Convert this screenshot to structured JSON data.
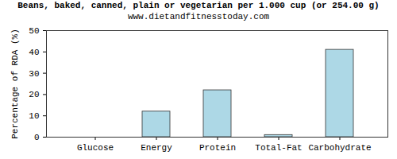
{
  "chart_data": {
    "type": "bar",
    "title": "Beans, baked, canned, plain or vegetarian per 1.000 cup (or 254.00 g)",
    "subtitle": "www.dietandfitnesstoday.com",
    "y_label": "Percentage of RDA (%)",
    "categories": [
      "Glucose",
      "Energy",
      "Protein",
      "Total-Fat",
      "Carbohydrate"
    ],
    "values": [
      0,
      12,
      22,
      1,
      41
    ],
    "color": "#add8e6",
    "ylim": [
      0,
      50
    ],
    "yticks": [
      0,
      10,
      20,
      30,
      40,
      50
    ],
    "grid": false
  }
}
